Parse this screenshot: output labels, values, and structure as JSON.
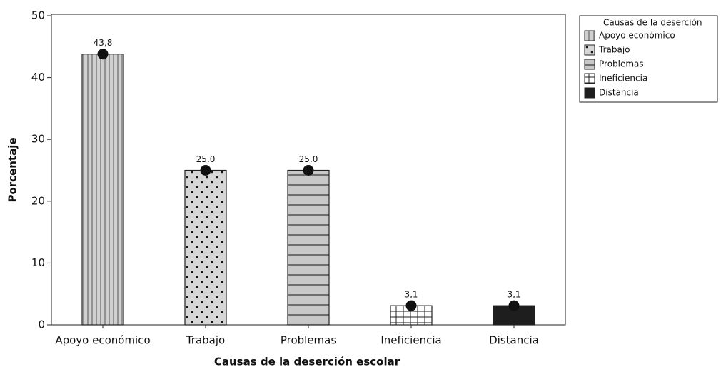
{
  "chart_data": {
    "type": "bar",
    "x_label": "Causas de la deserción escolar",
    "y_label": "Porcentaje",
    "legend_title": "Causas de la deserción",
    "legend": "outside-top-right",
    "categories": [
      "Apoyo económico",
      "Trabajo",
      "Problemas",
      "Ineficiencia",
      "Distancia"
    ],
    "values": [
      43.8,
      25.0,
      25.0,
      3.1,
      3.1
    ],
    "value_labels": [
      "43,8",
      "25,0",
      "25,0",
      "3,1",
      "3,1"
    ],
    "patterns": [
      "vertical",
      "dots",
      "horizontal",
      "grid",
      "solid"
    ],
    "colors": [
      "#cfcfcf",
      "#d4d4d4",
      "#c8c8c8",
      "#ffffff",
      "#1e1e1e"
    ],
    "marker_color": "#111111",
    "ylim": [
      0,
      50
    ],
    "yticks": [
      0,
      10,
      20,
      30,
      40,
      50
    ],
    "grid": false
  }
}
